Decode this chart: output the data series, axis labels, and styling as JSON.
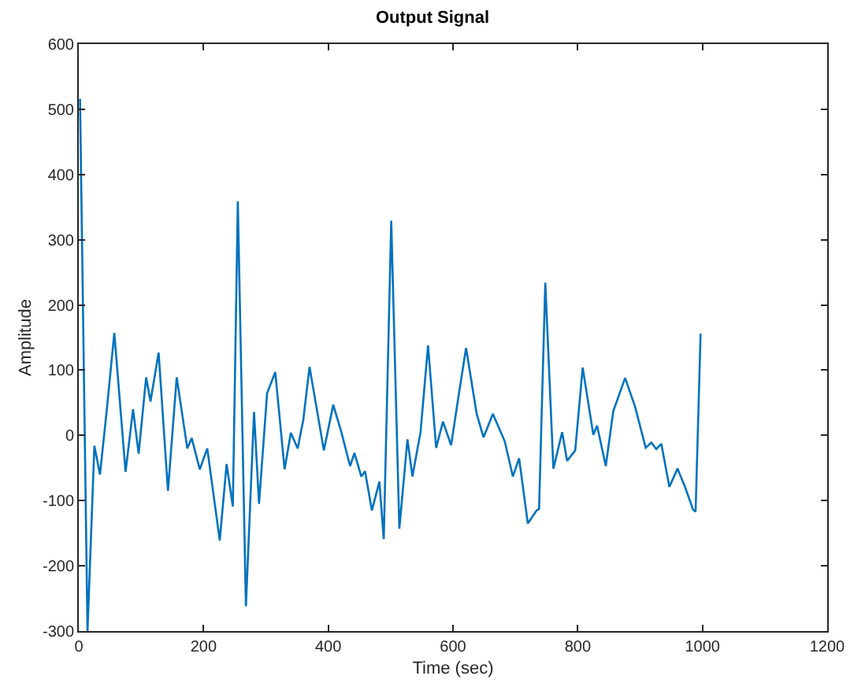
{
  "chart_data": {
    "type": "line",
    "title": "Output Signal",
    "xlabel": "Time (sec)",
    "ylabel": "Amplitude",
    "xlim": [
      0,
      1200
    ],
    "xticks": [
      0,
      200,
      400,
      600,
      800,
      1000,
      1200
    ],
    "ylim": [
      -300,
      600
    ],
    "yticks": [
      -300,
      -200,
      -100,
      0,
      100,
      200,
      300,
      400,
      500,
      600
    ],
    "marker": "none",
    "line_style": "solid",
    "series": [
      {
        "color": "#0072bd",
        "x": [
          2,
          14,
          25,
          34,
          45,
          57,
          75,
          87,
          96,
          108,
          115,
          128,
          143,
          157,
          174,
          181,
          194,
          206,
          226,
          237,
          247,
          255,
          268,
          281,
          289,
          302,
          315,
          330,
          340,
          351,
          360,
          370,
          393,
          408,
          421,
          435,
          442,
          453,
          459,
          470,
          482,
          489,
          501,
          514,
          527,
          535,
          548,
          560,
          573,
          584,
          597,
          611,
          621,
          638,
          649,
          664,
          683,
          696,
          706,
          720,
          734,
          738,
          748,
          761,
          775,
          783,
          796,
          808,
          825,
          831,
          845,
          857,
          876,
          892,
          909,
          918,
          926,
          934,
          947,
          960,
          972,
          985,
          989,
          997
        ],
        "values": [
          516,
          -300,
          -16,
          -60,
          40,
          157,
          -56,
          40,
          -28,
          89,
          52,
          127,
          -85,
          89,
          -20,
          -4,
          -52,
          -20,
          -161,
          -44,
          -109,
          359,
          -262,
          36,
          -105,
          65,
          97,
          -52,
          4,
          -20,
          24,
          105,
          -23,
          47,
          5,
          -47,
          -27,
          -63,
          -55,
          -115,
          -71,
          -159,
          329,
          -143,
          -6,
          -63,
          5,
          138,
          -19,
          21,
          -15,
          73,
          134,
          33,
          -3,
          33,
          -9,
          -63,
          -35,
          -135,
          -115,
          -113,
          234,
          -51,
          5,
          -39,
          -23,
          104,
          1,
          15,
          -47,
          37,
          88,
          44,
          -19,
          -11,
          -21,
          -13,
          -79,
          -51,
          -79,
          -114,
          -117,
          156
        ]
      }
    ]
  }
}
